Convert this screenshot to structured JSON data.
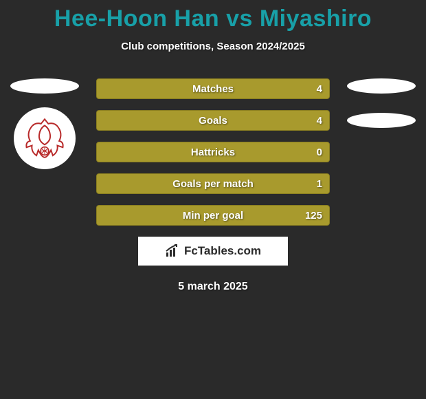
{
  "header": {
    "title": "Hee-Hoon Han vs Miyashiro",
    "title_color": "#18a0a8",
    "subtitle": "Club competitions, Season 2024/2025"
  },
  "background_color": "#2a2a2a",
  "stats": {
    "bar_color": "#a89a2d",
    "bar_border": "#8a7e20",
    "text_color": "#ffffff",
    "rows": [
      {
        "label": "Matches",
        "value": "4"
      },
      {
        "label": "Goals",
        "value": "4"
      },
      {
        "label": "Hattricks",
        "value": "0"
      },
      {
        "label": "Goals per match",
        "value": "1"
      },
      {
        "label": "Min per goal",
        "value": "125"
      }
    ]
  },
  "avatars": {
    "placeholder_bg": "#ffffff",
    "left_crest_color": "#b82a2a"
  },
  "brand": {
    "text": "FcTables.com",
    "icon_color": "#2a2a2a"
  },
  "date": "5 march 2025"
}
